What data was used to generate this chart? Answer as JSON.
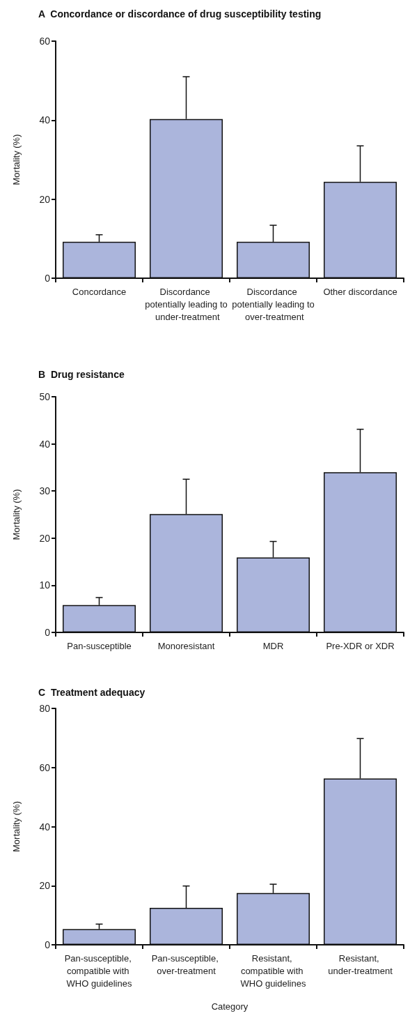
{
  "chart_data": [
    {
      "type": "bar",
      "title": "A  Concordance or discordance of drug susceptibility testing",
      "ylabel": "Mortality (%)",
      "categories": [
        "Concordance",
        "Discordance potentially leading to under-treatment",
        "Discordance potentially leading to over-treatment",
        "Other discordance"
      ],
      "values": [
        9.2,
        40.3,
        9.2,
        24.4
      ],
      "errors": [
        [
          9.2,
          11.0
        ],
        [
          40.3,
          51.0
        ],
        [
          9.2,
          13.4
        ],
        [
          24.4,
          33.5
        ]
      ],
      "color": "#abb5dc",
      "ylim": [
        0,
        60
      ],
      "yticks": [
        0,
        20,
        40,
        60
      ]
    },
    {
      "type": "bar",
      "title": "B  Drug resistance",
      "ylabel": "Mortality (%)",
      "categories": [
        "Pan-susceptible",
        "Monoresistant",
        "MDR",
        "Pre-XDR or XDR"
      ],
      "values": [
        5.8,
        25.1,
        15.9,
        34.0
      ],
      "errors": [
        [
          5.8,
          7.4
        ],
        [
          25.1,
          32.5
        ],
        [
          15.9,
          19.3
        ],
        [
          34.0,
          43.1
        ]
      ],
      "color": "#abb5dc",
      "ylim": [
        0,
        50
      ],
      "yticks": [
        0,
        10,
        20,
        30,
        40,
        50
      ]
    },
    {
      "type": "bar",
      "title": "C  Treatment adequacy",
      "ylabel": "Mortality (%)",
      "xlabel": "Category",
      "categories": [
        "Pan-susceptible, compatible with WHO guidelines",
        "Pan-susceptible, over-treatment",
        "Resistant, compatible with WHO guidelines",
        "Resistant, under-treatment"
      ],
      "values": [
        5.3,
        12.5,
        17.5,
        56.3
      ],
      "errors": [
        [
          5.3,
          7.0
        ],
        [
          12.5,
          19.9
        ],
        [
          17.5,
          20.5
        ],
        [
          56.3,
          69.8
        ]
      ],
      "color": "#abb5dc",
      "ylim": [
        0,
        80
      ],
      "yticks": [
        0,
        20,
        40,
        60,
        80
      ]
    }
  ]
}
